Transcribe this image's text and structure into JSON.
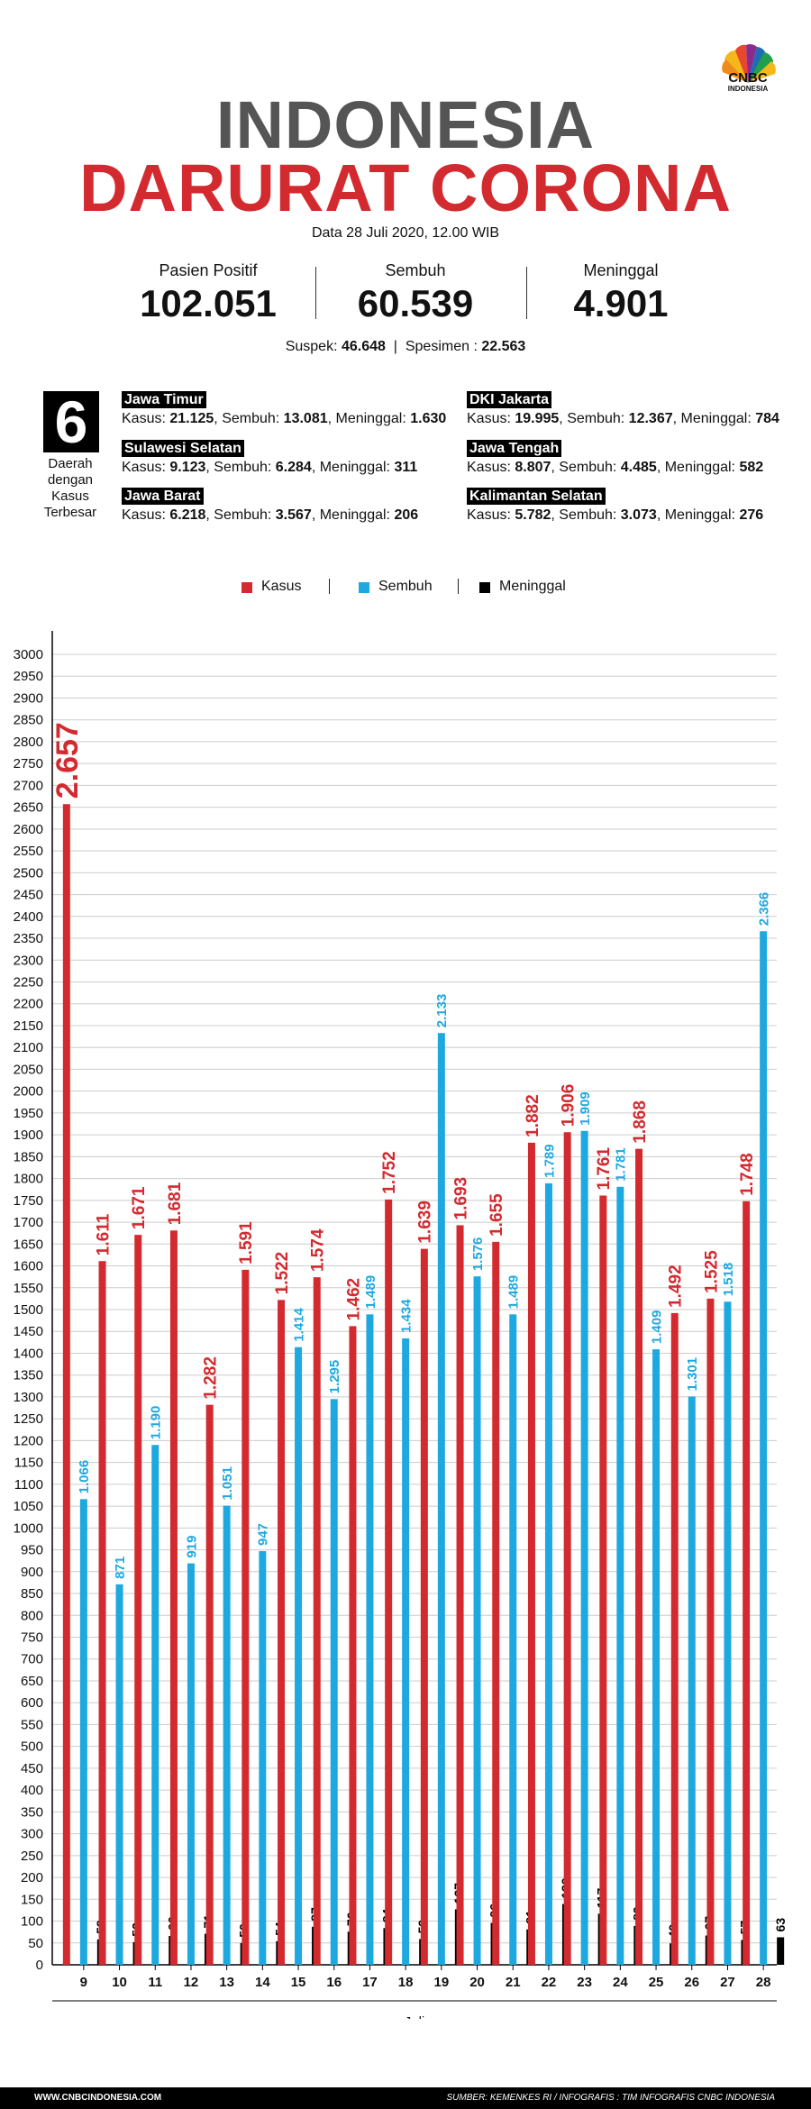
{
  "brand": {
    "logo": "peacock-logo",
    "name": "CNBC",
    "sub": "INDONESIA"
  },
  "header": {
    "title_line1": "INDONESIA",
    "title_line2": "DARURAT CORONA",
    "date": "Data 28 Juli 2020, 12.00 WIB"
  },
  "stats": [
    {
      "label": "Pasien Positif",
      "value": "102.051"
    },
    {
      "label": "Sembuh",
      "value": "60.539"
    },
    {
      "label": "Meninggal",
      "value": "4.901"
    }
  ],
  "suspek": {
    "label": "Suspek:",
    "value": "46.648",
    "sep": "|",
    "label2": "Spesimen :",
    "value2": "22.563"
  },
  "regions_box": {
    "number": "6",
    "caption_lines": [
      "Daerah",
      "dengan",
      "Kasus",
      "Terbesar"
    ]
  },
  "regions": [
    {
      "name": "Jawa Timur",
      "k_label": "Kasus: ",
      "kasus": "21.125",
      "s_label": ", Sembuh: ",
      "sembuh": "13.081",
      "m_label": ", Meninggal: ",
      "meninggal": "1.630"
    },
    {
      "name": "Sulawesi Selatan",
      "k_label": "Kasus: ",
      "kasus": "9.123",
      "s_label": ", Sembuh: ",
      "sembuh": "6.284",
      "m_label": ", Meninggal: ",
      "meninggal": "311"
    },
    {
      "name": "Jawa Barat",
      "k_label": "Kasus: ",
      "kasus": "6.218",
      "s_label": ", Sembuh: ",
      "sembuh": "3.567",
      "m_label": ", Meninggal: ",
      "meninggal": "206"
    },
    {
      "name": "DKI Jakarta",
      "k_label": "Kasus: ",
      "kasus": "19.995",
      "s_label": ", Sembuh: ",
      "sembuh": "12.367",
      "m_label": ", Meninggal: ",
      "meninggal": "784"
    },
    {
      "name": "Jawa Tengah",
      "k_label": "Kasus: ",
      "kasus": "8.807",
      "s_label": ", Sembuh: ",
      "sembuh": "4.485",
      "m_label": ",  Meninggal: ",
      "meninggal": "582"
    },
    {
      "name": "Kalimantan Selatan",
      "k_label": "Kasus: ",
      "kasus": "5.782",
      "s_label": ", Sembuh: ",
      "sembuh": "3.073",
      "m_label": ", Meninggal: ",
      "meninggal": "276"
    }
  ],
  "colors": {
    "kasus": "#d32a2f",
    "sembuh": "#1ea8e0",
    "meninggal": "#000000",
    "grid": "#cccccc"
  },
  "chart_data": {
    "type": "bar",
    "title": "",
    "xlabel": "Juli",
    "ylabel": "",
    "ylim": [
      0,
      3000
    ],
    "grid": true,
    "legend_placement": "top-center",
    "yticks": [
      0,
      50,
      100,
      150,
      200,
      250,
      300,
      350,
      400,
      450,
      500,
      550,
      600,
      650,
      700,
      750,
      800,
      850,
      900,
      950,
      1000,
      1050,
      1100,
      1150,
      1200,
      1250,
      1300,
      1350,
      1400,
      1450,
      1500,
      1550,
      1600,
      1650,
      1700,
      1750,
      1800,
      1850,
      1900,
      1950,
      2000,
      2050,
      2100,
      2150,
      2200,
      2250,
      2300,
      2350,
      2400,
      2450,
      2500,
      2550,
      2600,
      2650,
      2700,
      2750,
      2800,
      2850,
      2900,
      2950,
      3000
    ],
    "categories": [
      "9",
      "10",
      "11",
      "12",
      "13",
      "14",
      "15",
      "16",
      "17",
      "18",
      "19",
      "20",
      "21",
      "22",
      "23",
      "24",
      "25",
      "26",
      "27",
      "28"
    ],
    "series": [
      {
        "name": "Kasus",
        "values": [
          2657,
          1611,
          1671,
          1681,
          1282,
          1591,
          1522,
          1574,
          1462,
          1752,
          1639,
          1693,
          1655,
          1882,
          1906,
          1761,
          1868,
          1492,
          1525,
          1748
        ],
        "labels": [
          "2.657",
          "1.611",
          "1.671",
          "1.681",
          "1.282",
          "1.591",
          "1.522",
          "1.574",
          "1.462",
          "1.752",
          "1.639",
          "1.693",
          "1.655",
          "1.882",
          "1.906",
          "1.761",
          "1.868",
          "1.492",
          "1.525",
          "1.748"
        ]
      },
      {
        "name": "Sembuh",
        "values": [
          1066,
          871,
          1190,
          919,
          1051,
          947,
          1414,
          1295,
          1489,
          1434,
          2133,
          1576,
          1489,
          1789,
          1909,
          1781,
          1409,
          1301,
          1518,
          2366
        ],
        "labels": [
          "1.066",
          "871",
          "1.190",
          "919",
          "1.051",
          "947",
          "1.414",
          "1.295",
          "1.489",
          "1.434",
          "2.133",
          "1.576",
          "1.489",
          "1.789",
          "1.909",
          "1.781",
          "1.409",
          "1.301",
          "1.518",
          "2.366"
        ]
      },
      {
        "name": "Meninggal",
        "values": [
          58,
          52,
          66,
          71,
          50,
          54,
          87,
          76,
          84,
          59,
          127,
          96,
          81,
          139,
          117,
          89,
          49,
          67,
          57,
          63
        ],
        "labels": [
          "58",
          "52",
          "66",
          "71",
          "50",
          "54",
          "87",
          "76",
          "84",
          "59",
          "127",
          "96",
          "81",
          "139",
          "117",
          "89",
          "49",
          "67",
          "57",
          "63"
        ]
      }
    ]
  },
  "footer": {
    "left": "WWW.CNBCINDONESIA.COM",
    "right": "SUMBER: KEMENKES RI / INFOGRAFIS : TIM INFOGRAFIS CNBC INDONESIA"
  }
}
